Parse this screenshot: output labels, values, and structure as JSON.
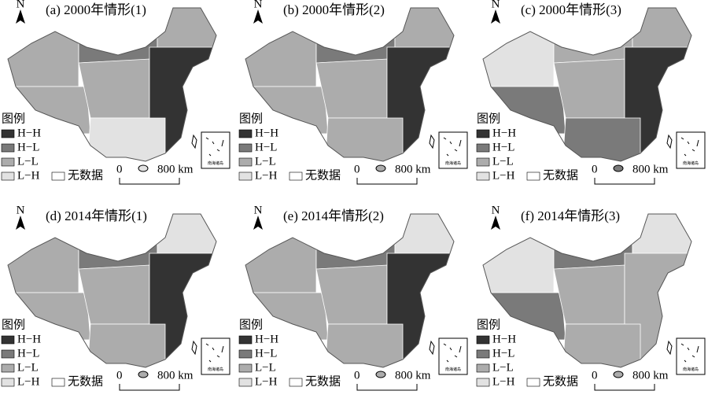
{
  "panels": [
    {
      "title": "(a) 2000年情形(1)"
    },
    {
      "title": "(b) 2000年情形(2)"
    },
    {
      "title": "(c) 2000年情形(3)"
    },
    {
      "title": "(d) 2014年情形(1)"
    },
    {
      "title": "(e) 2014年情形(2)"
    },
    {
      "title": "(f) 2014年情形(3)"
    }
  ],
  "north": "N",
  "legend": {
    "title": "图例",
    "items": [
      "H−H",
      "H−L",
      "L−L",
      "L−H"
    ],
    "no_data": "无数据"
  },
  "scale_bar": {
    "start": "0",
    "end": "800 km"
  },
  "inset_label": "南海诸岛"
}
